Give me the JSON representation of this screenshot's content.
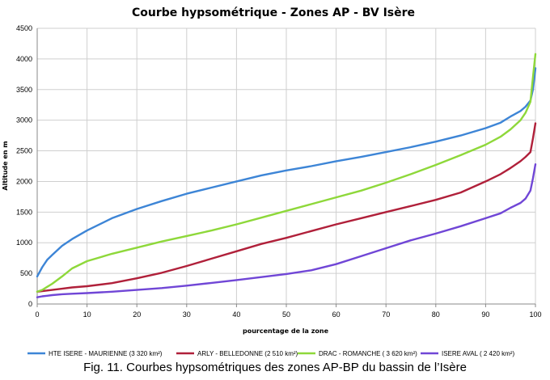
{
  "chart_data": {
    "type": "line",
    "title": "Courbe hypsométrique - Zones AP - BV Isère",
    "xlabel": "pourcentage de la zone",
    "ylabel": "Altitude en m",
    "xlim": [
      0,
      100
    ],
    "ylim": [
      0,
      4500
    ],
    "xticks": [
      "0",
      "10",
      "20",
      "30",
      "40",
      "50",
      "60",
      "70",
      "80",
      "90",
      "100"
    ],
    "yticks": [
      "0",
      "500",
      "1000",
      "1500",
      "2000",
      "2500",
      "3000",
      "3500",
      "4000",
      "4500"
    ],
    "grid": true,
    "legend_position": "bottom",
    "x": [
      0,
      1,
      2,
      3,
      5,
      7,
      10,
      15,
      20,
      25,
      30,
      35,
      40,
      45,
      50,
      55,
      60,
      65,
      70,
      75,
      80,
      85,
      90,
      93,
      95,
      97,
      98,
      99,
      99.5,
      100
    ],
    "series": [
      {
        "name": "HTE ISERE - MAURIENNE (3 320 km²)",
        "color": "#3d85d6",
        "values": [
          450,
          600,
          720,
          800,
          950,
          1060,
          1200,
          1400,
          1550,
          1680,
          1800,
          1900,
          2000,
          2100,
          2180,
          2250,
          2330,
          2400,
          2480,
          2560,
          2650,
          2750,
          2870,
          2960,
          3060,
          3150,
          3220,
          3320,
          3500,
          3850
        ]
      },
      {
        "name": "ARLY - BELLEDONNE (2 510 km²)",
        "color": "#b0203a",
        "values": [
          200,
          210,
          220,
          230,
          250,
          270,
          290,
          340,
          420,
          510,
          620,
          740,
          860,
          980,
          1080,
          1190,
          1300,
          1400,
          1500,
          1600,
          1700,
          1820,
          2000,
          2120,
          2220,
          2330,
          2400,
          2480,
          2700,
          2950
        ]
      },
      {
        "name": "DRAC - ROMANCHE ( 3 620 km²)",
        "color": "#8ed83a",
        "values": [
          200,
          230,
          280,
          330,
          450,
          580,
          700,
          820,
          920,
          1020,
          1110,
          1200,
          1300,
          1410,
          1520,
          1630,
          1740,
          1850,
          1980,
          2120,
          2270,
          2430,
          2600,
          2730,
          2850,
          3000,
          3120,
          3300,
          3700,
          4080
        ]
      },
      {
        "name": "ISERE AVAL ( 2 420 km²)",
        "color": "#7046d6",
        "values": [
          110,
          125,
          135,
          145,
          160,
          168,
          178,
          200,
          230,
          260,
          300,
          345,
          390,
          440,
          490,
          550,
          650,
          780,
          910,
          1040,
          1150,
          1270,
          1400,
          1480,
          1570,
          1650,
          1720,
          1850,
          2050,
          2280
        ]
      }
    ]
  },
  "caption": "Fig. 11. Courbes hypsométriques des zones AP-BP du bassin de l’Isère"
}
